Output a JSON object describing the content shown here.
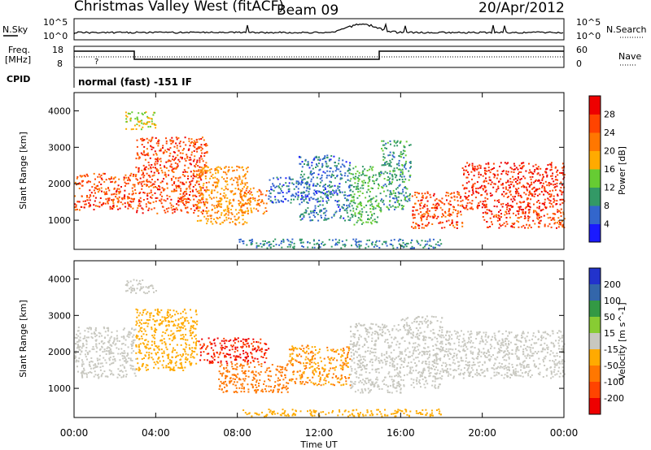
{
  "header": {
    "title": "Christmas Valley West (fitACF)",
    "beam": "Beam 09",
    "date": "20/Apr/2012"
  },
  "top_panels": {
    "nsky_label": "N.Sky",
    "nsearch_label": "N.Search",
    "noise_ticks_left": [
      "10^5",
      "10^0"
    ],
    "noise_ticks_right": [
      "10^5",
      "10^0"
    ],
    "freq_label": "Freq.",
    "freq_unit": "[MHz]",
    "freq_ticks": [
      "18",
      "8"
    ],
    "nave_label": "Nave",
    "nave_ticks": [
      "60",
      "0"
    ],
    "cpid_label": "CPID",
    "cpid_text": "normal (fast) -151 IF"
  },
  "chart_data": [
    {
      "type": "heatmap",
      "name": "power-panel",
      "ylabel": "Slant Range [km]",
      "xlabel": "Time UT",
      "ylim": [
        200,
        4500
      ],
      "xlim": [
        0,
        24
      ],
      "yticks": [
        "1000",
        "2000",
        "3000",
        "4000"
      ],
      "xticks": [
        "00:00",
        "04:00",
        "08:00",
        "12:00",
        "16:00",
        "20:00",
        "00:00"
      ],
      "colorbar": {
        "label": "Power [dB]",
        "ticks": [
          "4",
          "8",
          "12",
          "16",
          "20",
          "24",
          "28"
        ],
        "colors": [
          "#1a1aff",
          "#3366cc",
          "#339966",
          "#66cc33",
          "#ffaa00",
          "#ff7700",
          "#ff4400",
          "#ee0000"
        ]
      },
      "regions": [
        {
          "t": [
            0,
            3
          ],
          "r": [
            1300,
            2300
          ],
          "v": 26
        },
        {
          "t": [
            2.5,
            4
          ],
          "r": [
            3500,
            4000
          ],
          "v": 16
        },
        {
          "t": [
            3,
            6.5
          ],
          "r": [
            1200,
            3300
          ],
          "v": 26
        },
        {
          "t": [
            6,
            8.5
          ],
          "r": [
            900,
            2500
          ],
          "v": 20
        },
        {
          "t": [
            8,
            9.5
          ],
          "r": [
            1200,
            1900
          ],
          "v": 22
        },
        {
          "t": [
            9.5,
            11.5
          ],
          "r": [
            1500,
            2200
          ],
          "v": 6
        },
        {
          "t": [
            11,
            13.5
          ],
          "r": [
            1000,
            2800
          ],
          "v": 7
        },
        {
          "t": [
            13.5,
            15
          ],
          "r": [
            900,
            2500
          ],
          "v": 12
        },
        {
          "t": [
            15,
            16.5
          ],
          "r": [
            1300,
            3200
          ],
          "v": 10
        },
        {
          "t": [
            16.5,
            19
          ],
          "r": [
            800,
            1800
          ],
          "v": 26
        },
        {
          "t": [
            19,
            24
          ],
          "r": [
            1300,
            2600
          ],
          "v": 28
        },
        {
          "t": [
            20,
            24
          ],
          "r": [
            800,
            1300
          ],
          "v": 26
        },
        {
          "t": [
            8,
            18
          ],
          "r": [
            250,
            500
          ],
          "v": 8
        }
      ]
    },
    {
      "type": "heatmap",
      "name": "velocity-panel",
      "ylabel": "Slant Range [km]",
      "xlabel": "Time UT",
      "ylim": [
        200,
        4500
      ],
      "xlim": [
        0,
        24
      ],
      "yticks": [
        "1000",
        "2000",
        "3000",
        "4000"
      ],
      "xticks": [
        "00:00",
        "04:00",
        "08:00",
        "12:00",
        "16:00",
        "20:00",
        "00:00"
      ],
      "colorbar": {
        "label": "Velocity [m s^-1]",
        "ticks": [
          "200",
          "100",
          "50",
          "15",
          "-15",
          "-50",
          "-100",
          "-200"
        ],
        "colors": [
          "#2233cc",
          "#3366aa",
          "#339944",
          "#88cc33",
          "#c8c8c0",
          "#ffaa00",
          "#ff7700",
          "#ff4400",
          "#ee0000"
        ]
      },
      "regions": [
        {
          "t": [
            0,
            3
          ],
          "r": [
            1300,
            2700
          ],
          "v": 0
        },
        {
          "t": [
            2.5,
            4
          ],
          "r": [
            3600,
            4000
          ],
          "v": 0
        },
        {
          "t": [
            3,
            6
          ],
          "r": [
            1500,
            3200
          ],
          "v": -40
        },
        {
          "t": [
            6,
            9.5
          ],
          "r": [
            1700,
            2400
          ],
          "v": -200
        },
        {
          "t": [
            7,
            10.5
          ],
          "r": [
            900,
            1700
          ],
          "v": -60
        },
        {
          "t": [
            10.5,
            13.5
          ],
          "r": [
            1100,
            2200
          ],
          "v": -50
        },
        {
          "t": [
            13.5,
            16
          ],
          "r": [
            900,
            2800
          ],
          "v": 0
        },
        {
          "t": [
            16,
            18
          ],
          "r": [
            1000,
            3000
          ],
          "v": 0
        },
        {
          "t": [
            18,
            24
          ],
          "r": [
            1300,
            2600
          ],
          "v": 0
        },
        {
          "t": [
            8,
            18
          ],
          "r": [
            250,
            450
          ],
          "v": -40
        }
      ]
    }
  ]
}
